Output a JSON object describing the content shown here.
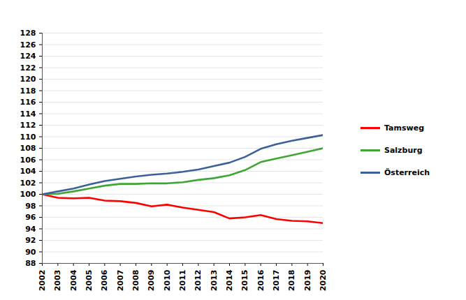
{
  "chart_data": {
    "type": "line",
    "x": [
      2002,
      2003,
      2004,
      2005,
      2006,
      2007,
      2008,
      2009,
      2010,
      2011,
      2012,
      2013,
      2014,
      2015,
      2016,
      2017,
      2018,
      2019,
      2020
    ],
    "series": [
      {
        "name": "Tamsweg",
        "color": "#ff0000",
        "values": [
          100,
          99.4,
          99.3,
          99.4,
          98.9,
          98.8,
          98.5,
          97.9,
          98.2,
          97.7,
          97.3,
          96.9,
          95.8,
          96.0,
          96.4,
          95.7,
          95.4,
          95.3,
          95.0
        ]
      },
      {
        "name": "Salzburg",
        "color": "#3fa535",
        "values": [
          100,
          100.1,
          100.5,
          101.0,
          101.5,
          101.8,
          101.8,
          101.9,
          101.9,
          102.1,
          102.5,
          102.8,
          103.3,
          104.2,
          105.6,
          106.2,
          106.8,
          107.4,
          108.0
        ]
      },
      {
        "name": "Österreich",
        "color": "#3c6098",
        "values": [
          100,
          100.5,
          101.0,
          101.7,
          102.3,
          102.7,
          103.1,
          103.4,
          103.6,
          103.9,
          104.3,
          104.9,
          105.5,
          106.5,
          107.9,
          108.7,
          109.3,
          109.8,
          110.3
        ]
      }
    ],
    "xlim": [
      2002,
      2020
    ],
    "xticks": [
      2002,
      2003,
      2004,
      2005,
      2006,
      2007,
      2008,
      2009,
      2010,
      2011,
      2012,
      2013,
      2014,
      2015,
      2016,
      2017,
      2018,
      2019,
      2020
    ],
    "ylim": [
      88,
      128
    ],
    "yticks": [
      88,
      90,
      92,
      94,
      96,
      98,
      100,
      102,
      104,
      106,
      108,
      110,
      112,
      114,
      116,
      118,
      120,
      122,
      124,
      126,
      128
    ],
    "grid": true,
    "legend": "right"
  }
}
